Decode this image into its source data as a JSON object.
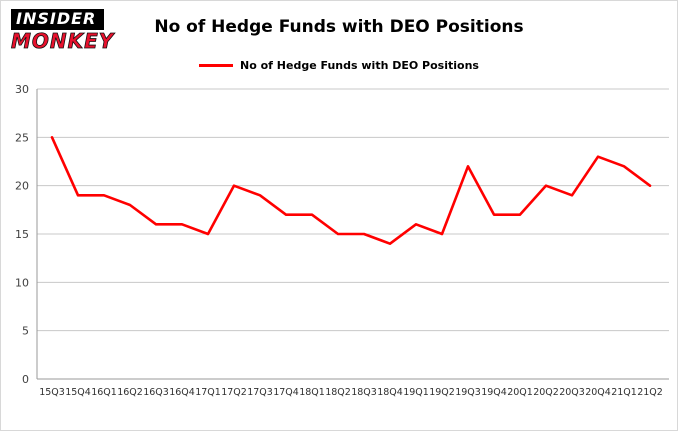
{
  "logo": {
    "line1": "INSIDER",
    "line2": "MONKEY"
  },
  "header": {
    "title": "No of Hedge Funds with DEO Positions"
  },
  "legend": {
    "label": "No of Hedge Funds with DEO Positions",
    "color": "#ff0000"
  },
  "chart_data": {
    "type": "line",
    "title": "No of Hedge Funds with DEO Positions",
    "categories": [
      "15Q3",
      "15Q4",
      "16Q1",
      "16Q2",
      "16Q3",
      "16Q4",
      "17Q1",
      "17Q2",
      "17Q3",
      "17Q4",
      "18Q1",
      "18Q2",
      "18Q3",
      "18Q4",
      "19Q1",
      "19Q2",
      "19Q3",
      "19Q4",
      "20Q1",
      "20Q2",
      "20Q3",
      "20Q4",
      "21Q1",
      "21Q2"
    ],
    "values": [
      25,
      19,
      19,
      18,
      16,
      16,
      15,
      20,
      19,
      17,
      17,
      15,
      15,
      14,
      16,
      15,
      22,
      17,
      17,
      20,
      19,
      23,
      22,
      20
    ],
    "xlabel": "",
    "ylabel": "",
    "ylim": [
      0,
      30
    ],
    "yticks": [
      0,
      5,
      10,
      15,
      20,
      25,
      30
    ],
    "grid": true,
    "line_color": "#ff0000",
    "axis_color": "#9a9a9a",
    "grid_color": "#c8c8c8",
    "legend_position": "top"
  }
}
